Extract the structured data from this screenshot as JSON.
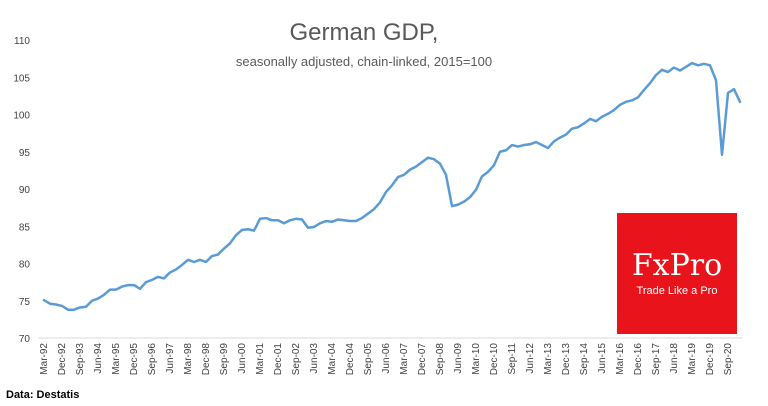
{
  "chart_data": {
    "type": "line",
    "title": "German GDP,",
    "subtitle": "seasonally adjusted, chain-linked, 2015=100",
    "source": "Data: Destatis",
    "ylim": [
      70,
      110
    ],
    "yticks": [
      70,
      75,
      80,
      85,
      90,
      95,
      100,
      105,
      110
    ],
    "grid": false,
    "line_color": "#5B9BD5",
    "x_tick_labels": [
      "Mar-92",
      "Dec-92",
      "Sep-93",
      "Jun-94",
      "Mar-95",
      "Dec-95",
      "Sep-96",
      "Jun-97",
      "Mar-98",
      "Dec-98",
      "Sep-99",
      "Jun-00",
      "Mar-01",
      "Dec-01",
      "Sep-02",
      "Jun-03",
      "Mar-04",
      "Dec-04",
      "Sep-05",
      "Jun-06",
      "Mar-07",
      "Dec-07",
      "Sep-08",
      "Jun-09",
      "Mar-10",
      "Dec-10",
      "Sep-11",
      "Jun-12",
      "Mar-13",
      "Dec-13",
      "Sep-14",
      "Jun-15",
      "Mar-16",
      "Dec-16",
      "Sep-17",
      "Jun-18",
      "Mar-19",
      "Dec-19",
      "Sep-20"
    ],
    "series": [
      {
        "values": [
          75.1,
          74.6,
          74.5,
          74.3,
          73.8,
          73.8,
          74.1,
          74.2,
          75.0,
          75.3,
          75.8,
          76.5,
          76.5,
          76.9,
          77.1,
          77.1,
          76.6,
          77.5,
          77.8,
          78.2,
          78.0,
          78.8,
          79.2,
          79.8,
          80.5,
          80.2,
          80.5,
          80.2,
          81.0,
          81.2,
          82.0,
          82.7,
          83.8,
          84.5,
          84.6,
          84.4,
          86.0,
          86.1,
          85.8,
          85.8,
          85.4,
          85.8,
          86.0,
          85.9,
          84.8,
          84.9,
          85.4,
          85.7,
          85.6,
          85.9,
          85.8,
          85.7,
          85.7,
          86.1,
          86.7,
          87.3,
          88.2,
          89.6,
          90.5,
          91.6,
          91.9,
          92.6,
          93.0,
          93.6,
          94.2,
          94.0,
          93.4,
          91.9,
          87.7,
          87.9,
          88.3,
          88.9,
          89.9,
          91.7,
          92.3,
          93.2,
          95.0,
          95.2,
          95.9,
          95.7,
          95.9,
          96.0,
          96.3,
          95.9,
          95.5,
          96.4,
          96.9,
          97.3,
          98.1,
          98.3,
          98.8,
          99.4,
          99.1,
          99.7,
          100.1,
          100.6,
          101.3,
          101.7,
          101.9,
          102.3,
          103.3,
          104.2,
          105.3,
          106.0,
          105.7,
          106.3,
          105.9,
          106.4,
          106.9,
          106.6,
          106.8,
          106.6,
          104.6,
          94.6,
          102.9,
          103.4,
          101.7
        ]
      }
    ]
  },
  "logo": {
    "name": "FxPro",
    "tagline": "Trade Like a Pro",
    "bg_color": "#E8131B"
  }
}
